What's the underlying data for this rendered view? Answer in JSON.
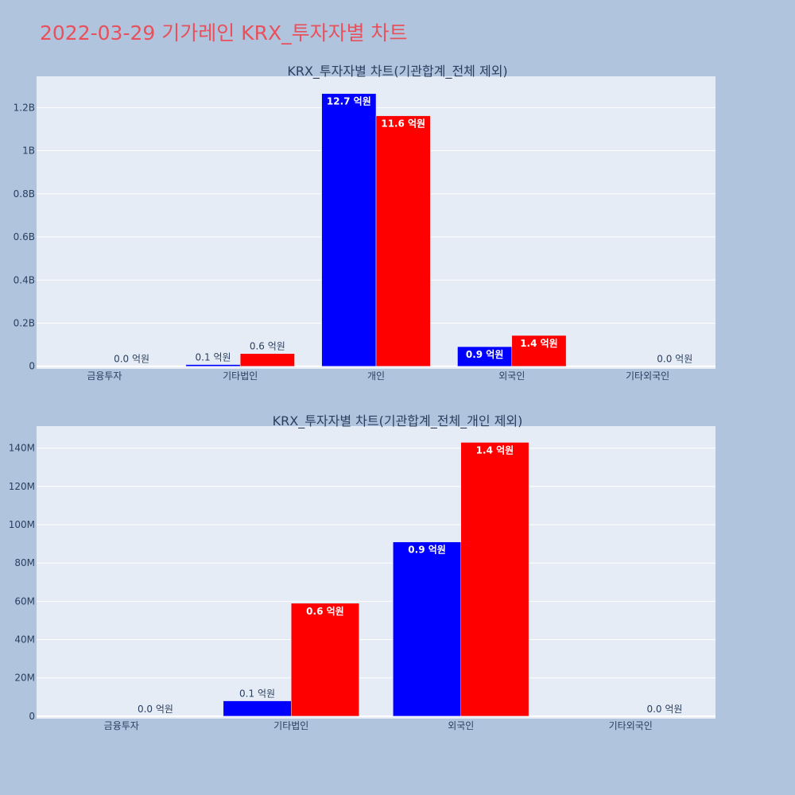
{
  "page": {
    "title": "2022-03-29 기가레인 KRX_투자자별 차트"
  },
  "colors": {
    "series_a": "#0000ff",
    "series_b": "#ff0000",
    "plot_bg": "#e5ecf6",
    "page_bg": "#b0c4de",
    "title": "#e8505b"
  },
  "chart_data": [
    {
      "type": "bar",
      "title": "KRX_투자자별 차트(기관합계_전체 제외)",
      "categories": [
        "금융투자",
        "기타법인",
        "개인",
        "외국인",
        "기타외국인"
      ],
      "series": [
        {
          "values": [
            0,
            8000000,
            1265000000,
            91000000,
            0
          ],
          "labels": [
            "",
            "0.1 억원",
            "12.7 억원",
            "0.9 억원",
            ""
          ]
        },
        {
          "values": [
            0,
            59000000,
            1162000000,
            143000000,
            0
          ],
          "labels": [
            "0.0 억원",
            "0.6 억원",
            "11.6 억원",
            "1.4 억원",
            "0.0 억원"
          ]
        }
      ],
      "yticks": [
        {
          "v": 0,
          "label": "0"
        },
        {
          "v": 200000000,
          "label": "0.2B"
        },
        {
          "v": 400000000,
          "label": "0.4B"
        },
        {
          "v": 600000000,
          "label": "0.6B"
        },
        {
          "v": 800000000,
          "label": "0.8B"
        },
        {
          "v": 1000000000,
          "label": "1B"
        },
        {
          "v": 1200000000,
          "label": "1.2B"
        }
      ],
      "ylim": [
        -12000000,
        1345000000
      ],
      "grid": true
    },
    {
      "type": "bar",
      "title": "KRX_투자자별 차트(기관합계_전체_개인 제외)",
      "categories": [
        "금융투자",
        "기타법인",
        "외국인",
        "기타외국인"
      ],
      "series": [
        {
          "values": [
            0,
            8000000,
            91000000,
            0
          ],
          "labels": [
            "",
            "0.1 억원",
            "0.9 억원",
            ""
          ]
        },
        {
          "values": [
            0,
            59000000,
            143000000,
            0
          ],
          "labels": [
            "0.0 억원",
            "0.6 억원",
            "1.4 억원",
            "0.0 억원"
          ]
        }
      ],
      "yticks": [
        {
          "v": 0,
          "label": "0"
        },
        {
          "v": 20000000,
          "label": "20M"
        },
        {
          "v": 40000000,
          "label": "40M"
        },
        {
          "v": 60000000,
          "label": "60M"
        },
        {
          "v": 80000000,
          "label": "80M"
        },
        {
          "v": 100000000,
          "label": "100M"
        },
        {
          "v": 120000000,
          "label": "120M"
        },
        {
          "v": 140000000,
          "label": "140M"
        }
      ],
      "ylim": [
        -1300000,
        151500000
      ],
      "grid": true
    }
  ]
}
